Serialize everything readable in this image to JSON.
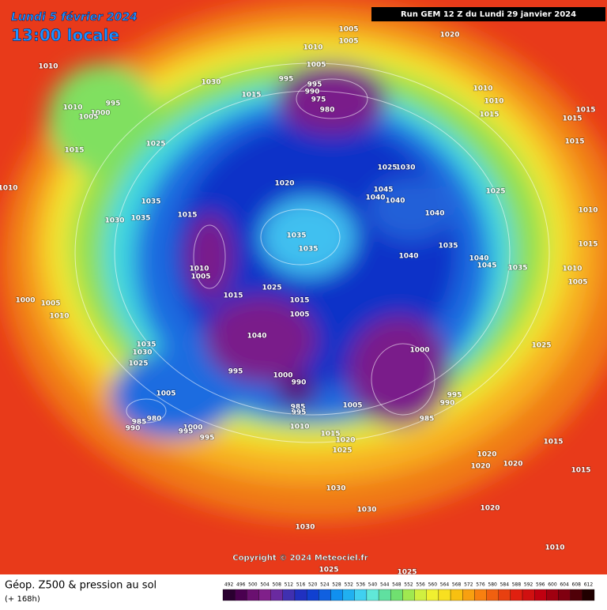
{
  "header": {
    "date": "Lundi 5 février 2024",
    "time": "13:00 locale",
    "run": "Run GEM 12 Z du Lundi 29 janvier 2024"
  },
  "copyright": "Copyright © 2024 Meteociel.fr",
  "footer": {
    "title": "Géop. Z500 & pression au sol",
    "lead": "(+ 168h)"
  },
  "legend": {
    "values": [
      492,
      496,
      500,
      504,
      508,
      512,
      516,
      520,
      524,
      528,
      532,
      536,
      540,
      544,
      548,
      552,
      556,
      560,
      564,
      568,
      572,
      576,
      580,
      584,
      588,
      592,
      596,
      600,
      604,
      608,
      612
    ],
    "colors": [
      "#2a0030",
      "#4a0050",
      "#6a1070",
      "#80208a",
      "#6a2aa0",
      "#4030b0",
      "#2030c0",
      "#1040d0",
      "#1060e0",
      "#1090f0",
      "#20b0f0",
      "#40d0f0",
      "#60e8d8",
      "#60e0a0",
      "#70e070",
      "#a0e850",
      "#d0f040",
      "#f0f030",
      "#f8e020",
      "#f8c010",
      "#f8a010",
      "#f88010",
      "#f06010",
      "#e84010",
      "#e02010",
      "#d01010",
      "#c00010",
      "#a00010",
      "#800010",
      "#500008",
      "#200000"
    ]
  },
  "isobar_labels": [
    "1005",
    "1005",
    "1020",
    "1010",
    "1030",
    "1010",
    "1005",
    "995",
    "995",
    "990",
    "975",
    "980",
    "1015",
    "995",
    "1010",
    "1000",
    "1005",
    "1010",
    "1010",
    "1015",
    "1015",
    "1015",
    "1015",
    "1025",
    "1015",
    "1025",
    "1030",
    "1010",
    "1020",
    "1045",
    "1040",
    "1040",
    "1025",
    "1035",
    "1035",
    "1030",
    "1015",
    "1040",
    "1010",
    "1035",
    "1035",
    "1035",
    "1040",
    "1040",
    "1045",
    "1035",
    "1015",
    "1010",
    "1010",
    "1005",
    "1005",
    "1025",
    "1000",
    "1005",
    "1015",
    "1015",
    "1005",
    "1010",
    "1035",
    "1030",
    "1025",
    "1040",
    "1000",
    "1025",
    "1000",
    "990",
    "995",
    "1005",
    "995",
    "990",
    "985",
    "985",
    "995",
    "1005",
    "980",
    "985",
    "990",
    "1000",
    "995",
    "995",
    "1010",
    "1015",
    "1020",
    "1025",
    "1015",
    "1020",
    "1020",
    "1020",
    "1015",
    "1030",
    "1030",
    "1020",
    "1030",
    "1010",
    "1025",
    "1025"
  ]
}
